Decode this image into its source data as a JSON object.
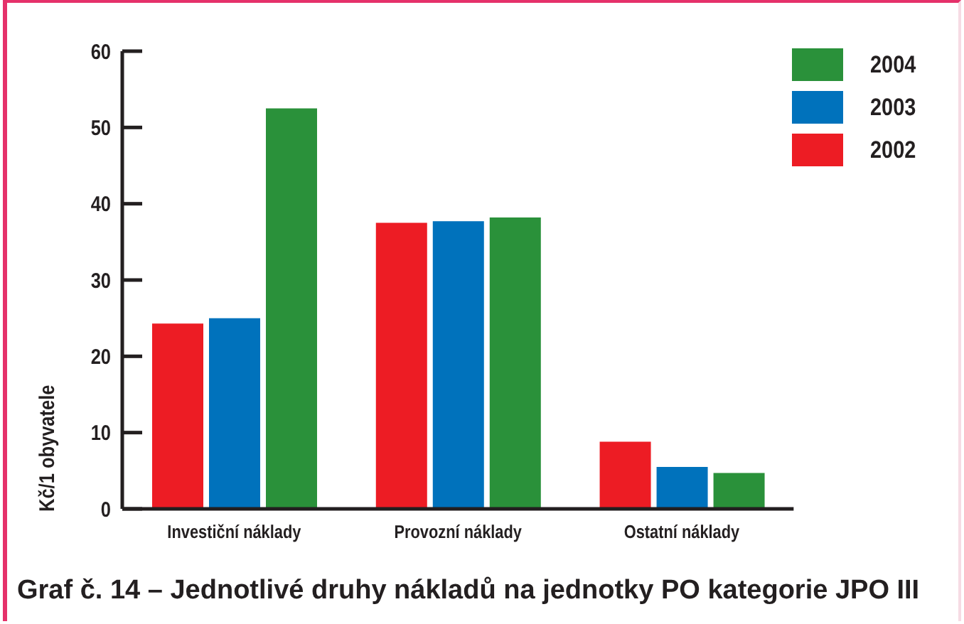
{
  "chart_data": {
    "type": "bar",
    "title": "Graf č. 14 – Jednotlivé druhy nákladů na jednotky PO kategorie JPO III",
    "ylabel": "Kč/1 obyvatele",
    "categories": [
      "Investiční náklady",
      "Provozní náklady",
      "Ostatní náklady"
    ],
    "series": [
      {
        "name": "2002",
        "color": "#ed1c24",
        "values": [
          24.3,
          37.5,
          8.8
        ]
      },
      {
        "name": "2003",
        "color": "#0072bc",
        "values": [
          25.0,
          37.7,
          5.5
        ]
      },
      {
        "name": "2004",
        "color": "#2a913a",
        "values": [
          52.5,
          38.2,
          4.7
        ]
      }
    ],
    "ylim": [
      0,
      60
    ],
    "yticks": [
      0,
      10,
      20,
      30,
      40,
      50,
      60
    ],
    "legend": "top right"
  }
}
